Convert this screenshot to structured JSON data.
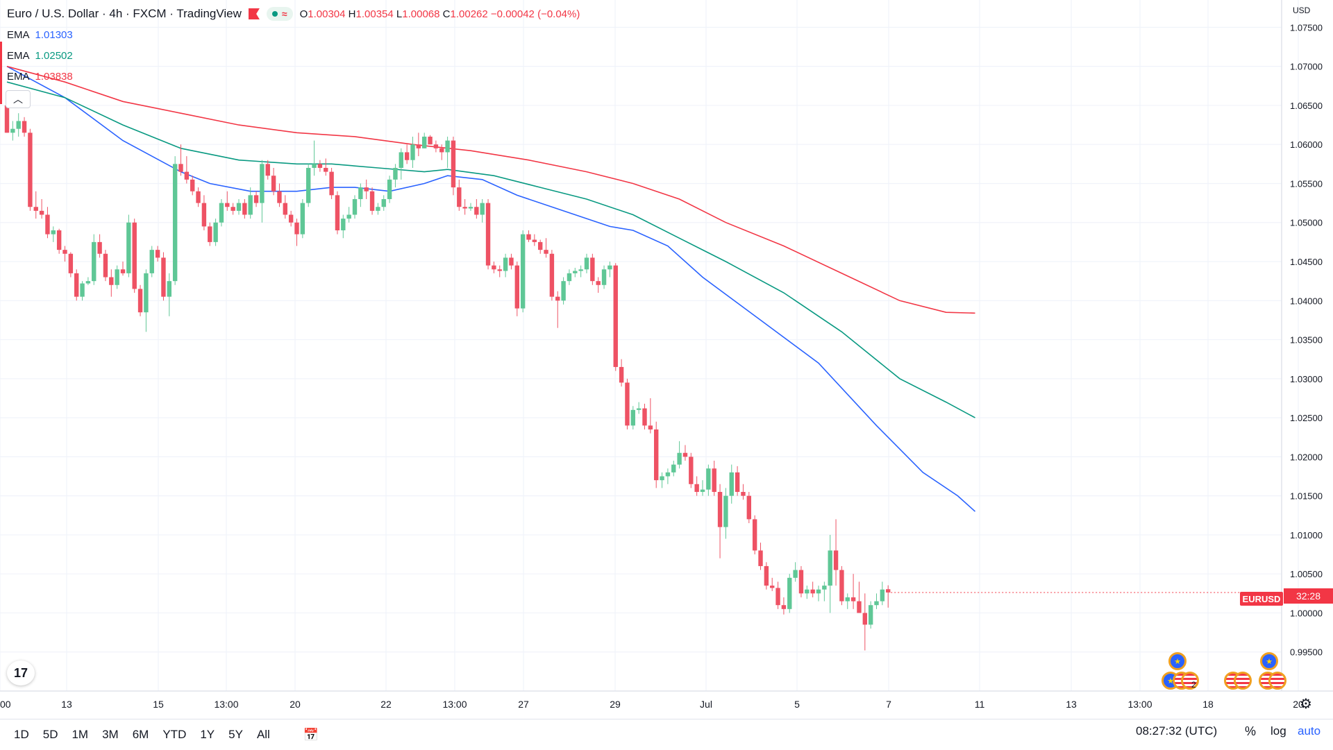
{
  "header": {
    "title": "Euro / U.S. Dollar · 4h · FXCM · TradingView",
    "ohlc": {
      "o_label": "O",
      "o": "1.00304",
      "h_label": "H",
      "h": "1.00354",
      "l_label": "L",
      "l": "1.00068",
      "c_label": "C",
      "c": "1.00262",
      "change": "−0.00042 (−0.04%)"
    }
  },
  "indicators": [
    {
      "name": "EMA",
      "value": "1.01303",
      "color": "#2962ff"
    },
    {
      "name": "EMA",
      "value": "1.02502",
      "color": "#089981"
    },
    {
      "name": "EMA",
      "value": "1.03838",
      "color": "#f23645"
    }
  ],
  "price_axis": {
    "currency": "USD",
    "symbol": "EURUSD",
    "countdown": "32:28"
  },
  "bottom": {
    "ranges": [
      "1D",
      "5D",
      "1M",
      "3M",
      "6M",
      "YTD",
      "1Y",
      "5Y",
      "All"
    ],
    "clock": "08:27:32 (UTC)",
    "pct": "%",
    "log": "log",
    "auto": "auto"
  },
  "colors": {
    "up": "#089981",
    "down": "#f23645",
    "upfill": "#5fc796",
    "downfill": "#ee5264",
    "grid": "#f0f3fa"
  },
  "chart_data": {
    "type": "candlestick",
    "title": "Euro / U.S. Dollar · 4h · FXCM",
    "xlabel": "",
    "ylabel": "",
    "ylim": [
      0.99,
      1.0785
    ],
    "y_ticks": [
      "1.07500",
      "1.07000",
      "1.06500",
      "1.06000",
      "1.05500",
      "1.05000",
      "1.04500",
      "1.04000",
      "1.03500",
      "1.03000",
      "1.02500",
      "1.02000",
      "1.01500",
      "1.01000",
      "1.00500",
      "1.00000",
      "0.99500"
    ],
    "x_ticks": [
      "00",
      "13",
      "15",
      "13:00",
      "20",
      "22",
      "13:00",
      "27",
      "29",
      "Jul",
      "5",
      "7",
      "11",
      "13",
      "13:00",
      "18",
      "20"
    ],
    "candles": [
      [
        1.065,
        1.0665,
        1.0615,
        1.0615
      ],
      [
        1.0615,
        1.063,
        1.0605,
        1.062
      ],
      [
        1.062,
        1.064,
        1.061,
        1.063
      ],
      [
        1.063,
        1.0635,
        1.061,
        1.0615
      ],
      [
        1.0615,
        1.062,
        1.0515,
        1.052
      ],
      [
        1.052,
        1.054,
        1.0505,
        1.0515
      ],
      [
        1.0515,
        1.053,
        1.0505,
        1.051
      ],
      [
        1.051,
        1.052,
        1.048,
        1.0485
      ],
      [
        1.0485,
        1.0495,
        1.0475,
        1.049
      ],
      [
        1.049,
        1.0492,
        1.046,
        1.0465
      ],
      [
        1.0465,
        1.047,
        1.045,
        1.046
      ],
      [
        1.046,
        1.0462,
        1.043,
        1.0435
      ],
      [
        1.0435,
        1.044,
        1.04,
        1.0405
      ],
      [
        1.0405,
        1.0425,
        1.04,
        1.0422
      ],
      [
        1.0422,
        1.043,
        1.042,
        1.0425
      ],
      [
        1.0425,
        1.0485,
        1.042,
        1.0475
      ],
      [
        1.0475,
        1.0485,
        1.0455,
        1.046
      ],
      [
        1.046,
        1.0465,
        1.0425,
        1.043
      ],
      [
        1.043,
        1.044,
        1.0405,
        1.042
      ],
      [
        1.042,
        1.0445,
        1.0415,
        1.044
      ],
      [
        1.044,
        1.045,
        1.0432,
        1.0435
      ],
      [
        1.0435,
        1.051,
        1.043,
        1.05
      ],
      [
        1.05,
        1.0505,
        1.041,
        1.0415
      ],
      [
        1.0415,
        1.042,
        1.038,
        1.0385
      ],
      [
        1.0385,
        1.044,
        1.036,
        1.0435
      ],
      [
        1.0435,
        1.047,
        1.043,
        1.0465
      ],
      [
        1.0465,
        1.047,
        1.045,
        1.0455
      ],
      [
        1.0455,
        1.0462,
        1.04,
        1.0405
      ],
      [
        1.0405,
        1.0435,
        1.038,
        1.0425
      ],
      [
        1.0425,
        1.0585,
        1.042,
        1.0575
      ],
      [
        1.0575,
        1.06,
        1.056,
        1.0565
      ],
      [
        1.0565,
        1.0585,
        1.055,
        1.0555
      ],
      [
        1.0555,
        1.056,
        1.0535,
        1.054
      ],
      [
        1.054,
        1.0545,
        1.052,
        1.0525
      ],
      [
        1.0525,
        1.0535,
        1.049,
        1.0495
      ],
      [
        1.0495,
        1.05,
        1.047,
        1.0475
      ],
      [
        1.0475,
        1.0505,
        1.047,
        1.05
      ],
      [
        1.05,
        1.053,
        1.0495,
        1.0525
      ],
      [
        1.0525,
        1.054,
        1.0515,
        1.052
      ],
      [
        1.052,
        1.0525,
        1.051,
        1.0515
      ],
      [
        1.0515,
        1.053,
        1.051,
        1.0525
      ],
      [
        1.0525,
        1.053,
        1.0505,
        1.051
      ],
      [
        1.051,
        1.0545,
        1.0505,
        1.0535
      ],
      [
        1.0535,
        1.054,
        1.052,
        1.0525
      ],
      [
        1.0525,
        1.058,
        1.05,
        1.0575
      ],
      [
        1.0575,
        1.058,
        1.0555,
        1.056
      ],
      [
        1.056,
        1.057,
        1.0535,
        1.054
      ],
      [
        1.054,
        1.055,
        1.052,
        1.0525
      ],
      [
        1.0525,
        1.0535,
        1.0505,
        1.051
      ],
      [
        1.051,
        1.0515,
        1.0495,
        1.05
      ],
      [
        1.05,
        1.0505,
        1.047,
        1.0485
      ],
      [
        1.0485,
        1.053,
        1.048,
        1.0525
      ],
      [
        1.0525,
        1.0575,
        1.052,
        1.057
      ],
      [
        1.057,
        1.0605,
        1.056,
        1.0575
      ],
      [
        1.0575,
        1.058,
        1.0565,
        1.057
      ],
      [
        1.057,
        1.0582,
        1.056,
        1.0565
      ],
      [
        1.0565,
        1.057,
        1.053,
        1.0535
      ],
      [
        1.0535,
        1.054,
        1.0485,
        1.049
      ],
      [
        1.049,
        1.051,
        1.048,
        1.0505
      ],
      [
        1.0505,
        1.052,
        1.05,
        1.051
      ],
      [
        1.051,
        1.0535,
        1.0505,
        1.053
      ],
      [
        1.053,
        1.055,
        1.052,
        1.0545
      ],
      [
        1.0545,
        1.0555,
        1.053,
        1.054
      ],
      [
        1.054,
        1.0545,
        1.051,
        1.0515
      ],
      [
        1.0515,
        1.0525,
        1.051,
        1.052
      ],
      [
        1.052,
        1.0535,
        1.0515,
        1.053
      ],
      [
        1.053,
        1.056,
        1.0525,
        1.0555
      ],
      [
        1.0555,
        1.0575,
        1.0545,
        1.057
      ],
      [
        1.057,
        1.0595,
        1.0555,
        1.059
      ],
      [
        1.059,
        1.06,
        1.0575,
        1.058
      ],
      [
        1.058,
        1.061,
        1.057,
        1.06
      ],
      [
        1.06,
        1.0615,
        1.0585,
        1.0595
      ],
      [
        1.0595,
        1.0615,
        1.0595,
        1.061
      ],
      [
        1.061,
        1.0612,
        1.06,
        1.06
      ],
      [
        1.06,
        1.0605,
        1.059,
        1.0595
      ],
      [
        1.0595,
        1.06,
        1.058,
        1.059
      ],
      [
        1.059,
        1.061,
        1.057,
        1.0605
      ],
      [
        1.0605,
        1.061,
        1.0535,
        1.0545
      ],
      [
        1.0545,
        1.0555,
        1.0515,
        1.052
      ],
      [
        1.052,
        1.053,
        1.051,
        1.0518
      ],
      [
        1.0518,
        1.0525,
        1.0515,
        1.052
      ],
      [
        1.052,
        1.053,
        1.0505,
        1.051
      ],
      [
        1.051,
        1.053,
        1.05,
        1.0525
      ],
      [
        1.0525,
        1.053,
        1.044,
        1.0445
      ],
      [
        1.0445,
        1.045,
        1.0435,
        1.044
      ],
      [
        1.044,
        1.0445,
        1.043,
        1.0438
      ],
      [
        1.0438,
        1.046,
        1.043,
        1.0455
      ],
      [
        1.0455,
        1.046,
        1.044,
        1.0445
      ],
      [
        1.0445,
        1.045,
        1.038,
        1.039
      ],
      [
        1.039,
        1.049,
        1.0385,
        1.0485
      ],
      [
        1.0485,
        1.049,
        1.0475,
        1.0478
      ],
      [
        1.0478,
        1.0485,
        1.047,
        1.0475
      ],
      [
        1.0475,
        1.0478,
        1.046,
        1.0465
      ],
      [
        1.0465,
        1.048,
        1.0455,
        1.046
      ],
      [
        1.046,
        1.0465,
        1.04,
        1.0405
      ],
      [
        1.0405,
        1.0412,
        1.0365,
        1.04
      ],
      [
        1.04,
        1.043,
        1.0395,
        1.0425
      ],
      [
        1.0425,
        1.044,
        1.042,
        1.0435
      ],
      [
        1.0435,
        1.0442,
        1.043,
        1.0438
      ],
      [
        1.0438,
        1.0445,
        1.043,
        1.044
      ],
      [
        1.044,
        1.046,
        1.0435,
        1.0455
      ],
      [
        1.0455,
        1.046,
        1.042,
        1.0425
      ],
      [
        1.0425,
        1.043,
        1.041,
        1.042
      ],
      [
        1.042,
        1.0445,
        1.0415,
        1.044
      ],
      [
        1.044,
        1.045,
        1.043,
        1.0445
      ],
      [
        1.0445,
        1.0448,
        1.031,
        1.0315
      ],
      [
        1.0315,
        1.0325,
        1.029,
        1.0295
      ],
      [
        1.0295,
        1.03,
        1.0235,
        1.024
      ],
      [
        1.024,
        1.0265,
        1.0235,
        1.026
      ],
      [
        1.026,
        1.027,
        1.0255,
        1.0262
      ],
      [
        1.0262,
        1.0268,
        1.0235,
        1.024
      ],
      [
        1.024,
        1.0275,
        1.023,
        1.0235
      ],
      [
        1.0235,
        1.0245,
        1.016,
        1.017
      ],
      [
        1.017,
        1.018,
        1.016,
        1.0175
      ],
      [
        1.0175,
        1.0185,
        1.0165,
        1.018
      ],
      [
        1.018,
        1.0195,
        1.0175,
        1.019
      ],
      [
        1.019,
        1.022,
        1.0185,
        1.0205
      ],
      [
        1.0205,
        1.0215,
        1.0195,
        1.02
      ],
      [
        1.02,
        1.0205,
        1.016,
        1.0165
      ],
      [
        1.0165,
        1.0175,
        1.015,
        1.0155
      ],
      [
        1.0155,
        1.017,
        1.015,
        1.0158
      ],
      [
        1.0158,
        1.019,
        1.015,
        1.0185
      ],
      [
        1.0185,
        1.0195,
        1.015,
        1.0155
      ],
      [
        1.0155,
        1.0165,
        1.007,
        1.011
      ],
      [
        1.011,
        1.016,
        1.0095,
        1.015
      ],
      [
        1.015,
        1.019,
        1.014,
        1.018
      ],
      [
        1.018,
        1.0188,
        1.015,
        1.0155
      ],
      [
        1.0155,
        1.0165,
        1.0145,
        1.015
      ],
      [
        1.015,
        1.0155,
        1.0115,
        1.012
      ],
      [
        1.012,
        1.0125,
        1.0075,
        1.008
      ],
      [
        1.008,
        1.009,
        1.0055,
        1.006
      ],
      [
        1.006,
        1.0065,
        1.003,
        1.0035
      ],
      [
        1.0035,
        1.0045,
        1.0028,
        1.0032
      ],
      [
        1.0032,
        1.004,
        1.0005,
        1.001
      ],
      [
        1.001,
        1.002,
        0.9998,
        1.0005
      ],
      [
        1.0005,
        1.005,
        1.0,
        1.0045
      ],
      [
        1.0045,
        1.0065,
        1.004,
        1.0055
      ],
      [
        1.0055,
        1.006,
        1.002,
        1.0025
      ],
      [
        1.0025,
        1.0035,
        1.0018,
        1.003
      ],
      [
        1.003,
        1.004,
        1.002,
        1.0025
      ],
      [
        1.0025,
        1.0035,
        1.0015,
        1.003
      ],
      [
        1.003,
        1.004,
        1.0015,
        1.0035
      ],
      [
        1.0035,
        1.01,
        1.0,
        1.008
      ],
      [
        1.008,
        1.012,
        1.0035,
        1.0055
      ],
      [
        1.0055,
        1.006,
        1.001,
        1.0015
      ],
      [
        1.0015,
        1.0025,
        1.0005,
        1.002
      ],
      [
        1.002,
        1.005,
        1.0005,
        1.0015
      ],
      [
        1.0015,
        1.004,
        1.0,
        1.0
      ],
      [
        1.0,
        1.0025,
        0.9952,
        0.9985
      ],
      [
        0.9985,
        1.0015,
        0.998,
        1.001
      ],
      [
        1.001,
        1.0025,
        1.0005,
        1.0015
      ],
      [
        1.0015,
        1.004,
        1.001,
        1.003
      ],
      [
        1.00304,
        1.00354,
        1.00068,
        1.00262
      ]
    ],
    "ema": [
      {
        "name": "EMA",
        "value": 1.01303,
        "color": "#2962ff",
        "points": [
          [
            0,
            1.07
          ],
          [
            10,
            1.066
          ],
          [
            20,
            1.0605
          ],
          [
            30,
            1.0565
          ],
          [
            35,
            1.055
          ],
          [
            42,
            1.054
          ],
          [
            50,
            1.054
          ],
          [
            56,
            1.0545
          ],
          [
            60,
            1.0545
          ],
          [
            66,
            1.054
          ],
          [
            72,
            1.055
          ],
          [
            76,
            1.056
          ],
          [
            82,
            1.0555
          ],
          [
            88,
            1.0535
          ],
          [
            96,
            1.0515
          ],
          [
            104,
            1.0495
          ],
          [
            108,
            1.049
          ],
          [
            114,
            1.047
          ],
          [
            120,
            1.043
          ],
          [
            130,
            1.0375
          ],
          [
            140,
            1.032
          ],
          [
            150,
            1.024
          ],
          [
            158,
            1.018
          ],
          [
            164,
            1.015
          ],
          [
            167,
            1.013
          ]
        ]
      },
      {
        "name": "EMA",
        "value": 1.02502,
        "color": "#089981",
        "points": [
          [
            0,
            1.068
          ],
          [
            10,
            1.066
          ],
          [
            20,
            1.0625
          ],
          [
            30,
            1.0595
          ],
          [
            40,
            1.058
          ],
          [
            50,
            1.0575
          ],
          [
            56,
            1.0575
          ],
          [
            64,
            1.057
          ],
          [
            72,
            1.0565
          ],
          [
            76,
            1.0568
          ],
          [
            84,
            1.056
          ],
          [
            92,
            1.0545
          ],
          [
            100,
            1.053
          ],
          [
            108,
            1.051
          ],
          [
            116,
            1.048
          ],
          [
            124,
            1.045
          ],
          [
            134,
            1.041
          ],
          [
            144,
            1.036
          ],
          [
            154,
            1.03
          ],
          [
            162,
            1.027
          ],
          [
            167,
            1.025
          ]
        ]
      },
      {
        "name": "EMA",
        "value": 1.03838,
        "color": "#f23645",
        "points": [
          [
            0,
            1.07
          ],
          [
            10,
            1.068
          ],
          [
            20,
            1.0655
          ],
          [
            30,
            1.064
          ],
          [
            40,
            1.0625
          ],
          [
            50,
            1.0615
          ],
          [
            60,
            1.061
          ],
          [
            70,
            1.06
          ],
          [
            80,
            1.0592
          ],
          [
            90,
            1.058
          ],
          [
            100,
            1.0565
          ],
          [
            108,
            1.055
          ],
          [
            116,
            1.053
          ],
          [
            124,
            1.05
          ],
          [
            134,
            1.047
          ],
          [
            144,
            1.0435
          ],
          [
            154,
            1.04
          ],
          [
            162,
            1.0385
          ],
          [
            167,
            1.0384
          ]
        ]
      }
    ],
    "events": {
      "count": "2"
    }
  }
}
